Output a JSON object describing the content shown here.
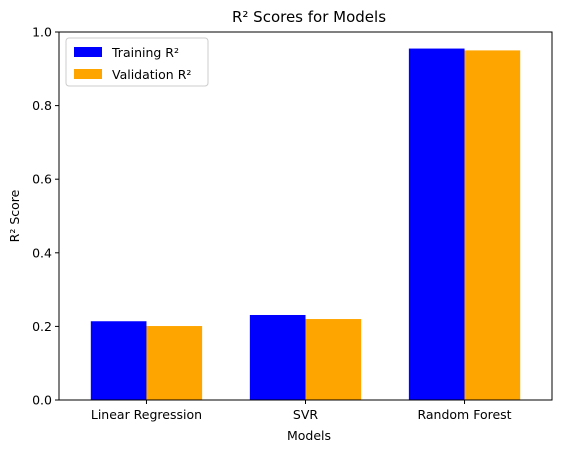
{
  "chart_data": {
    "type": "bar",
    "title": "R² Scores for Models",
    "xlabel": "Models",
    "ylabel": "R² Score",
    "categories": [
      "Linear Regression",
      "SVR",
      "Random Forest"
    ],
    "series": [
      {
        "name": "Training R²",
        "color": "#0000ff",
        "values": [
          0.214,
          0.231,
          0.955
        ]
      },
      {
        "name": "Validation R²",
        "color": "#ffa500",
        "values": [
          0.201,
          0.22,
          0.95
        ]
      }
    ],
    "ylim": [
      0,
      1.0
    ],
    "yticks": [
      "0.0",
      "0.2",
      "0.4",
      "0.6",
      "0.8",
      "1.0"
    ],
    "grid": false,
    "legend_position": "top-left"
  }
}
